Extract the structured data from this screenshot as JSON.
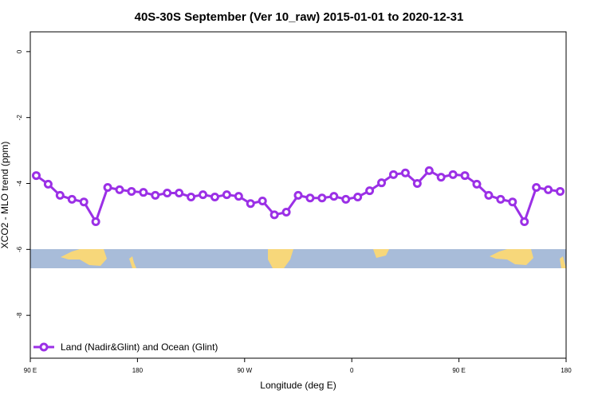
{
  "chart_data": {
    "type": "line",
    "title": "40S-30S September (Ver 10_raw)   2015-01-01 to 2020-12-31",
    "x_label": "Longitude (deg E)",
    "y_label": "XCO2 - MLO trend (ppm)",
    "xlim": [
      90,
      540
    ],
    "ylim": [
      -9.3,
      0.6
    ],
    "xticks": [
      {
        "value": 90,
        "label": "90 E"
      },
      180,
      {
        "value": 270,
        "label": "90 W"
      },
      {
        "value": 360,
        "label": "0"
      },
      {
        "value": 450,
        "label": "90 E"
      },
      {
        "value": 540,
        "label": "180"
      }
    ],
    "yticks": [
      0,
      -2,
      -4,
      -6,
      -8
    ],
    "x": [
      95,
      105,
      115,
      125,
      135,
      145,
      155,
      165,
      175,
      185,
      195,
      205,
      215,
      225,
      235,
      245,
      255,
      265,
      275,
      285,
      295,
      305,
      315,
      325,
      335,
      345,
      355,
      365,
      375,
      385,
      395,
      405,
      415,
      425,
      435,
      445,
      455,
      465,
      475,
      485,
      495,
      505,
      515,
      525,
      535
    ],
    "series": [
      {
        "name": "Land (Nadir&Glint) and Ocean (Glint)",
        "color": "#9b30e6",
        "values": [
          -3.76,
          -4.02,
          -4.36,
          -4.48,
          -4.56,
          -5.16,
          -4.12,
          -4.19,
          -4.24,
          -4.27,
          -4.36,
          -4.29,
          -4.29,
          -4.41,
          -4.34,
          -4.41,
          -4.34,
          -4.39,
          -4.61,
          -4.53,
          -4.95,
          -4.87,
          -4.36,
          -4.44,
          -4.44,
          -4.39,
          -4.48,
          -4.41,
          -4.22,
          -3.98,
          -3.73,
          -3.68,
          -4.0,
          -3.61,
          -3.81,
          -3.73,
          -3.76,
          -4.02,
          -4.36,
          -4.48,
          -4.56,
          -5.16,
          -4.12,
          -4.19,
          -4.24
        ]
      }
    ]
  }
}
